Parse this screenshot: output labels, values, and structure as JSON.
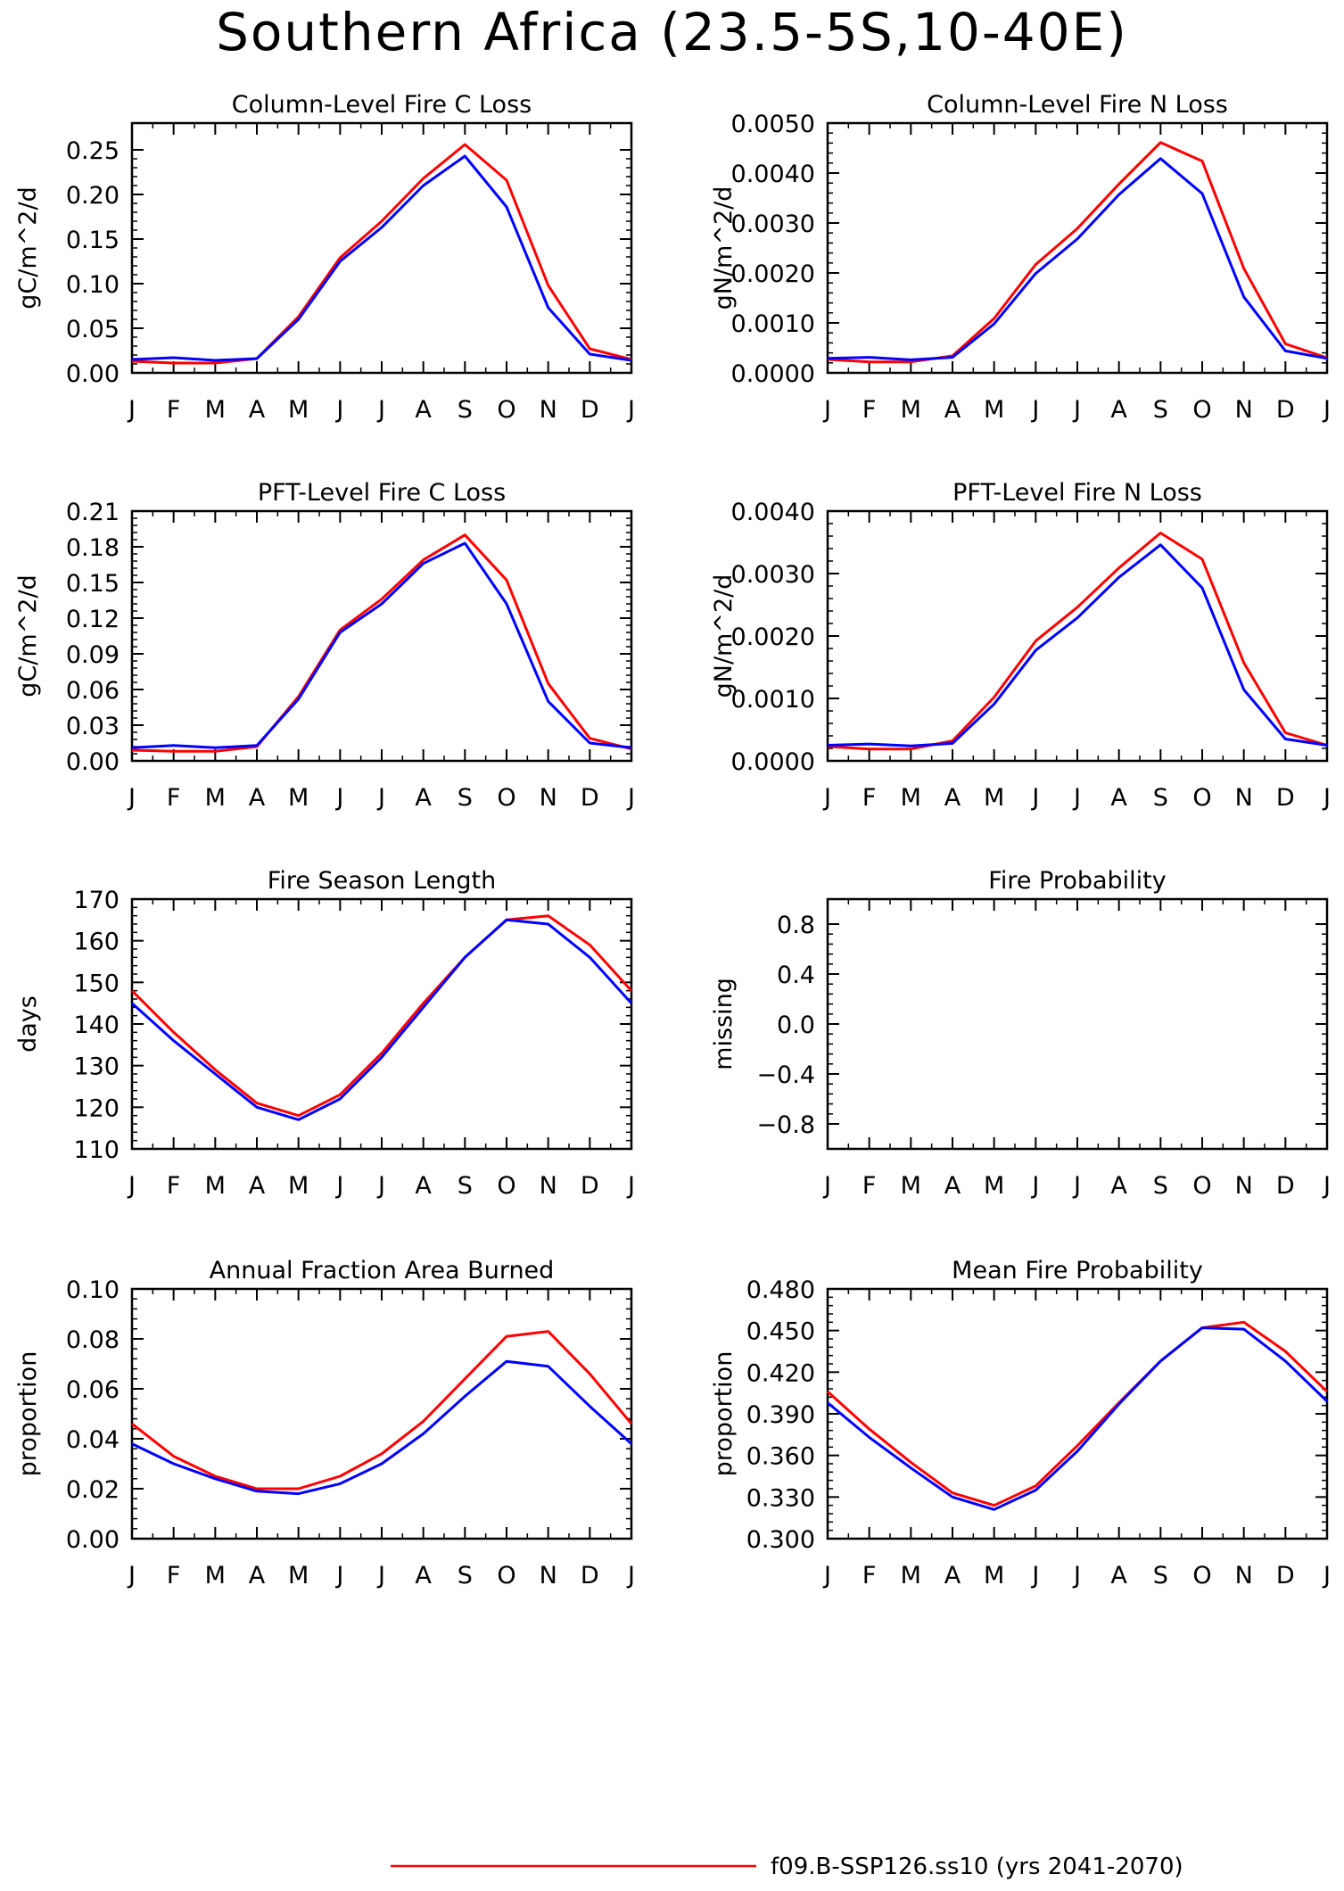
{
  "title": "Southern Africa (23.5-5S,10-40E)",
  "series_colors": {
    "experiment": "#ff0000",
    "control": "#0000ff"
  },
  "legend": {
    "label": "f09.B-SSP126.ss10 (yrs 2041-2070)"
  },
  "chart_data": [
    {
      "id": "col-fire-c-loss",
      "type": "line",
      "title": "Column-Level Fire C Loss",
      "ylabel": "gC/m^2/d",
      "ylim": [
        0,
        0.28
      ],
      "yticks": [
        0.0,
        0.05,
        0.1,
        0.15,
        0.2,
        0.25
      ],
      "ytick_labels": [
        "0.00",
        "0.05",
        "0.10",
        "0.15",
        "0.20",
        "0.25"
      ],
      "categories": [
        "J",
        "F",
        "M",
        "A",
        "M",
        "J",
        "J",
        "A",
        "S",
        "O",
        "N",
        "D",
        "J"
      ],
      "series": [
        {
          "color": "#ff0000",
          "values": [
            0.013,
            0.011,
            0.011,
            0.016,
            0.063,
            0.129,
            0.17,
            0.218,
            0.256,
            0.216,
            0.098,
            0.027,
            0.015
          ]
        },
        {
          "color": "#0000ff",
          "values": [
            0.015,
            0.017,
            0.014,
            0.016,
            0.06,
            0.125,
            0.163,
            0.21,
            0.243,
            0.186,
            0.073,
            0.021,
            0.014
          ]
        }
      ]
    },
    {
      "id": "col-fire-n-loss",
      "type": "line",
      "title": "Column-Level Fire N Loss",
      "ylabel": "gN/m^2/d",
      "ylim": [
        0,
        0.005
      ],
      "yticks": [
        0.0,
        0.001,
        0.002,
        0.003,
        0.004,
        0.005
      ],
      "ytick_labels": [
        "0.0000",
        "0.0010",
        "0.0020",
        "0.0030",
        "0.0040",
        "0.0050"
      ],
      "categories": [
        "J",
        "F",
        "M",
        "A",
        "M",
        "J",
        "J",
        "A",
        "S",
        "O",
        "N",
        "D",
        "J"
      ],
      "series": [
        {
          "color": "#ff0000",
          "values": [
            0.00027,
            0.00022,
            0.00022,
            0.00034,
            0.00109,
            0.00217,
            0.00289,
            0.00378,
            0.00461,
            0.00424,
            0.00209,
            0.00058,
            0.0003
          ]
        },
        {
          "color": "#0000ff",
          "values": [
            0.00029,
            0.00031,
            0.00026,
            0.00031,
            0.00098,
            0.00199,
            0.00268,
            0.00357,
            0.00429,
            0.00359,
            0.00152,
            0.00044,
            0.00029
          ]
        }
      ]
    },
    {
      "id": "pft-fire-c-loss",
      "type": "line",
      "title": "PFT-Level Fire C Loss",
      "ylabel": "gC/m^2/d",
      "ylim": [
        0,
        0.21
      ],
      "yticks": [
        0.0,
        0.03,
        0.06,
        0.09,
        0.12,
        0.15,
        0.18,
        0.21
      ],
      "ytick_labels": [
        "0.00",
        "0.03",
        "0.06",
        "0.09",
        "0.12",
        "0.15",
        "0.18",
        "0.21"
      ],
      "categories": [
        "J",
        "F",
        "M",
        "A",
        "M",
        "J",
        "J",
        "A",
        "S",
        "O",
        "N",
        "D",
        "J"
      ],
      "series": [
        {
          "color": "#ff0000",
          "values": [
            0.009,
            0.008,
            0.008,
            0.012,
            0.054,
            0.11,
            0.136,
            0.169,
            0.19,
            0.152,
            0.065,
            0.019,
            0.01
          ]
        },
        {
          "color": "#0000ff",
          "values": [
            0.011,
            0.013,
            0.011,
            0.013,
            0.052,
            0.108,
            0.132,
            0.166,
            0.183,
            0.132,
            0.05,
            0.015,
            0.011
          ]
        }
      ]
    },
    {
      "id": "pft-fire-n-loss",
      "type": "line",
      "title": "PFT-Level Fire N Loss",
      "ylabel": "gN/m^2/d",
      "ylim": [
        0,
        0.004
      ],
      "yticks": [
        0.0,
        0.001,
        0.002,
        0.003,
        0.004
      ],
      "ytick_labels": [
        "0.0000",
        "0.0010",
        "0.0020",
        "0.0030",
        "0.0040"
      ],
      "categories": [
        "J",
        "F",
        "M",
        "A",
        "M",
        "J",
        "J",
        "A",
        "S",
        "O",
        "N",
        "D",
        "J"
      ],
      "series": [
        {
          "color": "#ff0000",
          "values": [
            0.00023,
            0.00019,
            0.00019,
            0.00032,
            0.00102,
            0.00192,
            0.00246,
            0.00309,
            0.00365,
            0.00323,
            0.00157,
            0.00045,
            0.00025
          ]
        },
        {
          "color": "#0000ff",
          "values": [
            0.00025,
            0.00027,
            0.00024,
            0.00028,
            0.00091,
            0.00177,
            0.00229,
            0.00294,
            0.00346,
            0.00277,
            0.00114,
            0.00035,
            0.00025
          ]
        }
      ]
    },
    {
      "id": "fire-season-length",
      "type": "line",
      "title": "Fire Season Length",
      "ylabel": "days",
      "ylim": [
        110,
        170
      ],
      "yticks": [
        110,
        120,
        130,
        140,
        150,
        160,
        170
      ],
      "ytick_labels": [
        "110",
        "120",
        "130",
        "140",
        "150",
        "160",
        "170"
      ],
      "categories": [
        "J",
        "F",
        "M",
        "A",
        "M",
        "J",
        "J",
        "A",
        "S",
        "O",
        "N",
        "D",
        "J"
      ],
      "series": [
        {
          "color": "#ff0000",
          "values": [
            148,
            138,
            129,
            121,
            118,
            123,
            133,
            145,
            156,
            165,
            166,
            159,
            148
          ]
        },
        {
          "color": "#0000ff",
          "values": [
            145,
            136,
            128,
            120,
            117,
            122,
            132,
            144,
            156,
            165,
            164,
            156,
            145
          ]
        }
      ]
    },
    {
      "id": "fire-probability",
      "type": "line",
      "title": "Fire Probability",
      "ylabel": "missing",
      "ylim": [
        -1,
        1
      ],
      "yticks": [
        -0.8,
        -0.4,
        0.0,
        0.4,
        0.8
      ],
      "ytick_labels": [
        "-0.8",
        "-0.4",
        "0.0",
        "0.4",
        "0.8"
      ],
      "categories": [
        "J",
        "F",
        "M",
        "A",
        "M",
        "J",
        "J",
        "A",
        "S",
        "O",
        "N",
        "D",
        "J"
      ],
      "series": []
    },
    {
      "id": "annual-fraction-area-burned",
      "type": "line",
      "title": "Annual Fraction Area Burned",
      "ylabel": "proportion",
      "ylim": [
        0,
        0.1
      ],
      "yticks": [
        0.0,
        0.02,
        0.04,
        0.06,
        0.08,
        0.1
      ],
      "ytick_labels": [
        "0.00",
        "0.02",
        "0.04",
        "0.06",
        "0.08",
        "0.10"
      ],
      "categories": [
        "J",
        "F",
        "M",
        "A",
        "M",
        "J",
        "J",
        "A",
        "S",
        "O",
        "N",
        "D",
        "J"
      ],
      "series": [
        {
          "color": "#ff0000",
          "values": [
            0.046,
            0.033,
            0.025,
            0.02,
            0.02,
            0.025,
            0.034,
            0.047,
            0.064,
            0.081,
            0.083,
            0.066,
            0.046
          ]
        },
        {
          "color": "#0000ff",
          "values": [
            0.038,
            0.03,
            0.024,
            0.019,
            0.018,
            0.022,
            0.03,
            0.042,
            0.057,
            0.071,
            0.069,
            0.053,
            0.038
          ]
        }
      ]
    },
    {
      "id": "mean-fire-probability",
      "type": "line",
      "title": "Mean Fire Probability",
      "ylabel": "proportion",
      "ylim": [
        0.3,
        0.48
      ],
      "yticks": [
        0.3,
        0.33,
        0.36,
        0.39,
        0.42,
        0.45,
        0.48
      ],
      "ytick_labels": [
        "0.300",
        "0.330",
        "0.360",
        "0.390",
        "0.420",
        "0.450",
        "0.480"
      ],
      "categories": [
        "J",
        "F",
        "M",
        "A",
        "M",
        "J",
        "J",
        "A",
        "S",
        "O",
        "N",
        "D",
        "J"
      ],
      "series": [
        {
          "color": "#ff0000",
          "values": [
            0.406,
            0.379,
            0.355,
            0.333,
            0.324,
            0.338,
            0.367,
            0.398,
            0.428,
            0.452,
            0.456,
            0.435,
            0.406
          ]
        },
        {
          "color": "#0000ff",
          "values": [
            0.398,
            0.373,
            0.351,
            0.33,
            0.321,
            0.335,
            0.363,
            0.397,
            0.428,
            0.452,
            0.451,
            0.428,
            0.399
          ]
        }
      ]
    }
  ]
}
